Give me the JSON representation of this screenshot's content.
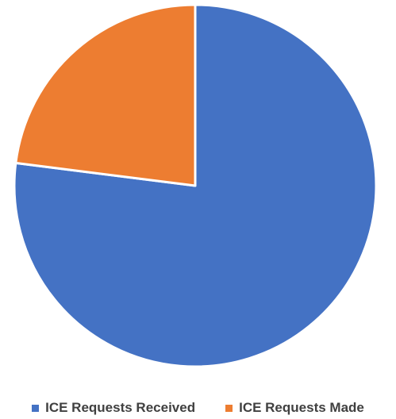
{
  "chart_data": {
    "type": "pie",
    "slices": [
      {
        "label": "ICE Requests Received",
        "value": 77,
        "color": "#4472C4"
      },
      {
        "label": "ICE Requests Made",
        "value": 23,
        "color": "#ED7D31"
      }
    ],
    "legend_position": "bottom",
    "start_angle": "12 o'clock",
    "direction": "clockwise"
  }
}
